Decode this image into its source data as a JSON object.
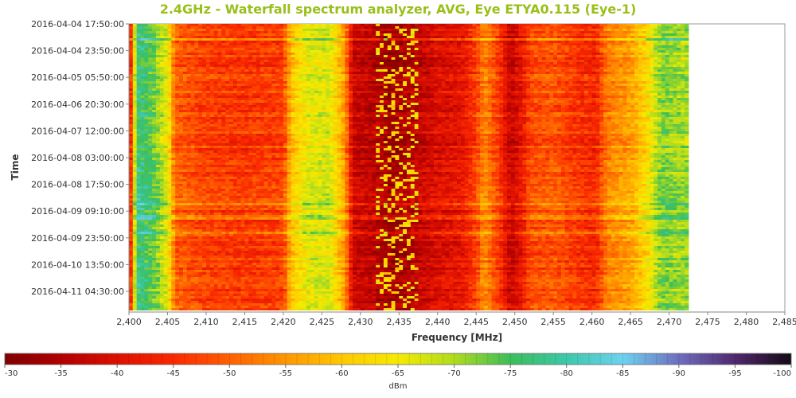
{
  "chart_data": {
    "type": "heatmap",
    "title": "2.4GHz - Waterfall spectrum analyzer, AVG, Eye ETYA0.115 (Eye-1)",
    "xlabel": "Frequency [MHz]",
    "ylabel": "Time",
    "x_range": [
      2400,
      2485
    ],
    "x_ticks": [
      "2,400",
      "2,405",
      "2,410",
      "2,415",
      "2,420",
      "2,425",
      "2,430",
      "2,435",
      "2,440",
      "2,445",
      "2,450",
      "2,455",
      "2,460",
      "2,465",
      "2,470",
      "2,475",
      "2,480",
      "2,485"
    ],
    "data_x_range": [
      2400,
      2472.5
    ],
    "y_ticks": [
      "2016-04-04 17:50:00",
      "2016-04-04 23:50:00",
      "2016-04-05 05:50:00",
      "2016-04-06 20:30:00",
      "2016-04-07 12:00:00",
      "2016-04-08 03:00:00",
      "2016-04-08 17:50:00",
      "2016-04-09 09:10:00",
      "2016-04-09 23:50:00",
      "2016-04-10 13:50:00",
      "2016-04-11 04:30:00"
    ],
    "colorbar": {
      "label": "dBm",
      "range": [
        -30,
        -100
      ],
      "ticks": [
        "-30",
        "-35",
        "-40",
        "-45",
        "-50",
        "-55",
        "-60",
        "-65",
        "-70",
        "-75",
        "-80",
        "-85",
        "-90",
        "-95",
        "-100"
      ]
    },
    "avg_spectrum": {
      "freq_mhz": [
        2400,
        2401,
        2403,
        2405,
        2406,
        2410,
        2415,
        2420,
        2421,
        2423,
        2426,
        2428,
        2429,
        2432,
        2434,
        2437,
        2440,
        2443,
        2445,
        2446,
        2448,
        2449.5,
        2451,
        2452,
        2455,
        2458,
        2460.5,
        2462,
        2465,
        2467,
        2469,
        2472.5
      ],
      "dbm": [
        -35,
        -78,
        -74,
        -66,
        -50,
        -47,
        -46,
        -47,
        -59,
        -66,
        -67,
        -55,
        -38,
        -36,
        -33,
        -36,
        -40,
        -41,
        -47,
        -54,
        -46,
        -37,
        -42,
        -48,
        -49,
        -46,
        -44,
        -53,
        -56,
        -62,
        -72,
        -70
      ]
    }
  }
}
